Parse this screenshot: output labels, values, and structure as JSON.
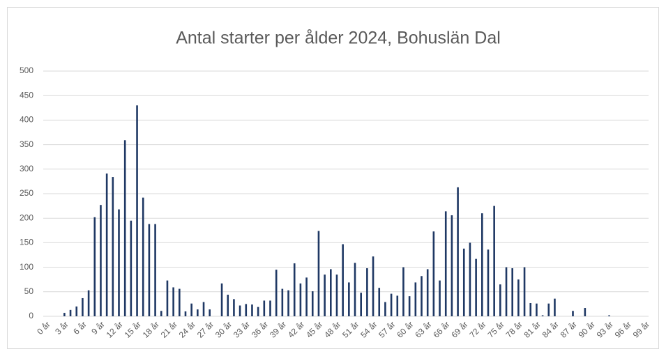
{
  "chart_data": {
    "type": "bar",
    "title": "Antal starter per ålder 2024, Bohuslän Dal",
    "categories": [
      "0 år",
      null,
      null,
      "3 år",
      null,
      null,
      "6 år",
      null,
      null,
      "9 år",
      null,
      null,
      "12 år",
      null,
      null,
      "15 år",
      null,
      null,
      "18 år",
      null,
      null,
      "21 år",
      null,
      null,
      "24 år",
      null,
      null,
      "27 år",
      null,
      null,
      "30 år",
      null,
      null,
      "33 år",
      null,
      null,
      "36 år",
      null,
      null,
      "39 år",
      null,
      null,
      "42 år",
      null,
      null,
      "45 år",
      null,
      null,
      "48 år",
      null,
      null,
      "51 år",
      null,
      null,
      "54 år",
      null,
      null,
      "57 år",
      null,
      null,
      "60 år",
      null,
      null,
      "63 år",
      null,
      null,
      "66 år",
      null,
      null,
      "69 år",
      null,
      null,
      "72 år",
      null,
      null,
      "75 år",
      null,
      null,
      "78 år",
      null,
      null,
      "81 år",
      null,
      null,
      "84 år",
      null,
      null,
      "87 år",
      null,
      null,
      "90 år",
      null,
      null,
      "93 år",
      null,
      null,
      "96 år",
      null,
      null,
      "99 år"
    ],
    "values": [
      0,
      0,
      0,
      7,
      13,
      20,
      37,
      53,
      202,
      227,
      291,
      284,
      218,
      359,
      195,
      430,
      242,
      188,
      188,
      11,
      73,
      59,
      56,
      10,
      26,
      14,
      29,
      14,
      0,
      67,
      44,
      35,
      22,
      25,
      24,
      19,
      32,
      32,
      95,
      56,
      53,
      108,
      67,
      79,
      51,
      174,
      85,
      96,
      85,
      147,
      69,
      109,
      48,
      98,
      122,
      58,
      29,
      46,
      42,
      100,
      41,
      69,
      82,
      96,
      173,
      73,
      214,
      206,
      263,
      138,
      150,
      117,
      210,
      136,
      225,
      65,
      100,
      98,
      75,
      100,
      27,
      26,
      2,
      26,
      36,
      0,
      0,
      11,
      0,
      17,
      0,
      0,
      0,
      2,
      0,
      0,
      0,
      0,
      0,
      0
    ],
    "color": "#1f3864",
    "ylim": [
      0,
      500
    ],
    "yticks": [
      0,
      50,
      100,
      150,
      200,
      250,
      300,
      350,
      400,
      450,
      500
    ],
    "grid": true
  }
}
